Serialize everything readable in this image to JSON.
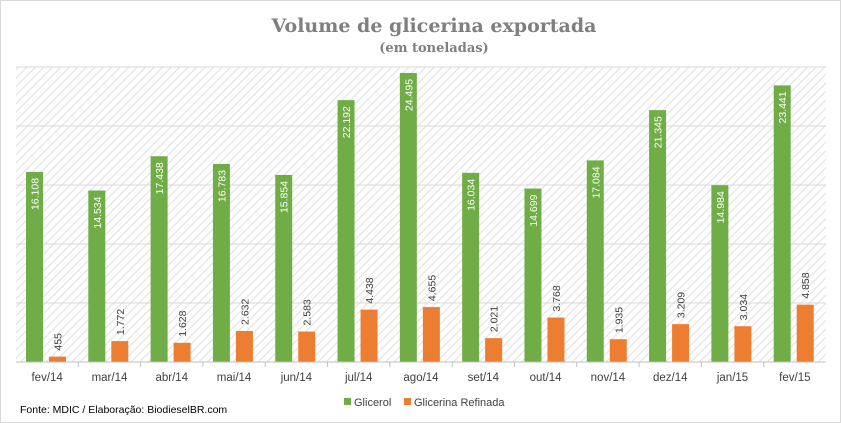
{
  "chart_data": {
    "type": "bar",
    "title": "Volume de glicerina exportada",
    "subtitle": "(em toneladas)",
    "categories": [
      "fev/14",
      "mar/14",
      "abr/14",
      "mai/14",
      "jun/14",
      "jul/14",
      "ago/14",
      "set/14",
      "out/14",
      "nov/14",
      "dez/14",
      "jan/15",
      "fev/15"
    ],
    "series": [
      {
        "name": "Glicerol",
        "color": "#70ad47",
        "values": [
          16108,
          14534,
          17438,
          16783,
          15854,
          22192,
          24495,
          16034,
          14699,
          17084,
          21345,
          14984,
          23441
        ],
        "labels": [
          "16.108",
          "14.534",
          "17.438",
          "16.783",
          "15.854",
          "22.192",
          "24.495",
          "16.034",
          "14.699",
          "17.084",
          "21.345",
          "14.984",
          "23.441"
        ]
      },
      {
        "name": "Glicerina Refinada",
        "color": "#ed7d31",
        "values": [
          455,
          1772,
          1628,
          2632,
          2583,
          4438,
          4655,
          2021,
          3768,
          1935,
          3209,
          3034,
          4858
        ],
        "labels": [
          "455",
          "1.772",
          "1.628",
          "2.632",
          "2.583",
          "4.438",
          "4.655",
          "2.021",
          "3.768",
          "1.935",
          "3.209",
          "3.034",
          "4.858"
        ]
      }
    ],
    "ylim": [
      0,
      25000
    ],
    "yticks": [
      0,
      5000,
      10000,
      15000,
      20000,
      25000
    ],
    "grid": true,
    "legend": "bottom-center",
    "source": "Fonte: MDIC / Elaboração: BiodieselBR.com"
  }
}
